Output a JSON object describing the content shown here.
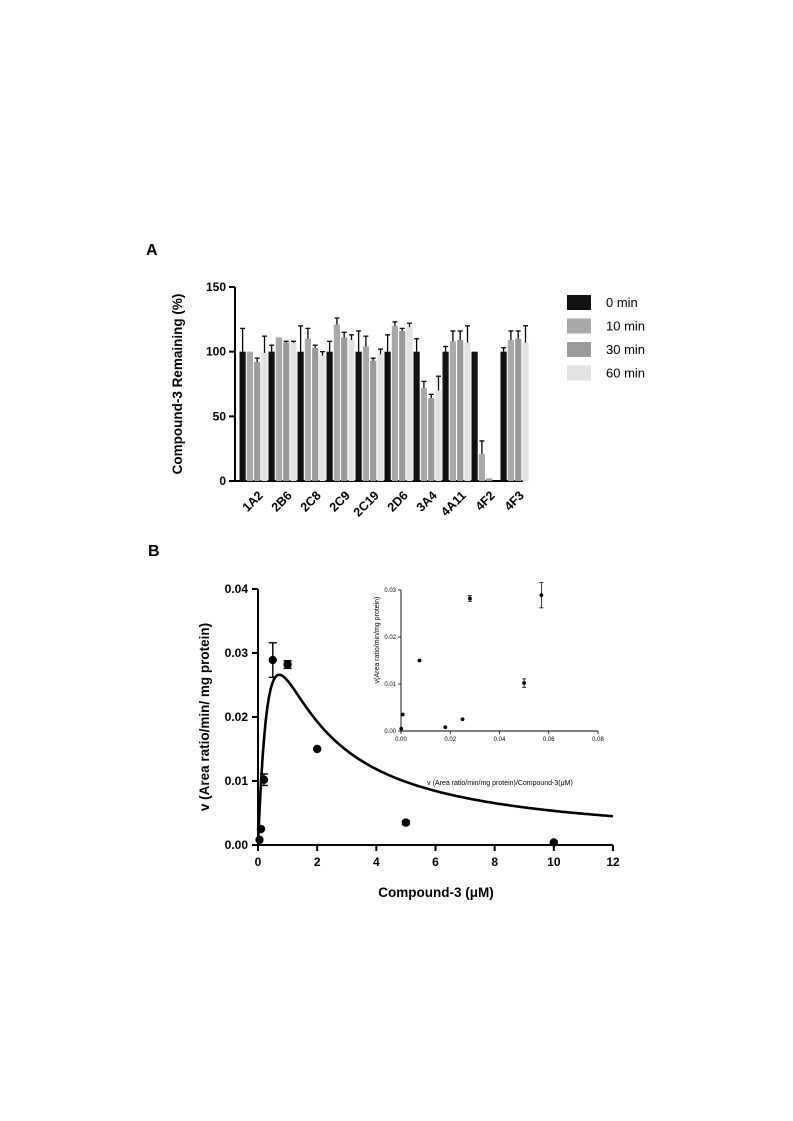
{
  "labels": {
    "panel_a": "A",
    "panel_b": "B"
  },
  "colors": {
    "c0": "#111111",
    "c10": "#a9a9a9",
    "c30": "#9a9a9a",
    "c60": "#e2e2e2",
    "ink": "#000000"
  },
  "chart_data": [
    {
      "type": "bar",
      "title": "",
      "xlabel": "",
      "ylabel": "Compound-3 Remaining (%)",
      "ylim": [
        0,
        150
      ],
      "yticks": [
        0,
        50,
        100,
        150
      ],
      "categories": [
        "1A2",
        "2B6",
        "2C8",
        "2C9",
        "2C19",
        "2D6",
        "3A4",
        "4A11",
        "4F2",
        "4F3"
      ],
      "series": [
        {
          "name": "0 min",
          "values": [
            100,
            100,
            100,
            100,
            100,
            100,
            100,
            100,
            100,
            100
          ],
          "errors": [
            18,
            5,
            20,
            8,
            16,
            13,
            10,
            4,
            0,
            3
          ]
        },
        {
          "name": "10 min",
          "values": [
            100,
            111,
            110,
            121,
            104,
            120,
            72,
            108,
            21,
            109
          ],
          "errors": [
            0,
            0,
            8,
            5,
            8,
            3,
            5,
            8,
            10,
            7
          ]
        },
        {
          "name": "30 min",
          "values": [
            92,
            107,
            103,
            111,
            93,
            116,
            64,
            109,
            2,
            110
          ],
          "errors": [
            3,
            1,
            2,
            4,
            2,
            2,
            3,
            7,
            0,
            6
          ]
        },
        {
          "name": "60 min",
          "values": [
            99,
            107,
            97,
            109,
            98,
            119,
            70,
            107,
            0,
            107
          ],
          "errors": [
            13,
            1,
            3,
            4,
            4,
            3,
            11,
            13,
            0,
            13
          ]
        }
      ],
      "legend": "right"
    },
    {
      "type": "scatter",
      "title": "",
      "xlabel": "Compound-3 (μM)",
      "ylabel": "v  (Area ratio/min/ mg protein)",
      "xlim": [
        0,
        12
      ],
      "ylim": [
        0,
        0.04
      ],
      "xticks": [
        "0",
        "2",
        "4",
        "6",
        "8",
        "10",
        "12"
      ],
      "yticks": [
        "0.00",
        "0.01",
        "0.02",
        "0.03",
        "0.04"
      ],
      "points": [
        {
          "x": 0.05,
          "y": 0.0008,
          "err": 0
        },
        {
          "x": 0.1,
          "y": 0.0025,
          "err": 0
        },
        {
          "x": 0.2,
          "y": 0.0102,
          "err": 0.0009
        },
        {
          "x": 0.5,
          "y": 0.0289,
          "err": 0.0027
        },
        {
          "x": 1.0,
          "y": 0.0282,
          "err": 0.0006
        },
        {
          "x": 2.0,
          "y": 0.015,
          "err": 0
        },
        {
          "x": 5.0,
          "y": 0.0035,
          "err": 0.0003
        },
        {
          "x": 10.0,
          "y": 0.0004,
          "err": 0
        }
      ],
      "fit_curve": {
        "model": "substrate inhibition",
        "x_peak": 0.72,
        "y_peak": 0.0266
      }
    },
    {
      "type": "scatter",
      "title": "",
      "xlabel": "v (Area ratio/min/mg protein)/Compound-3(μM)",
      "ylabel": "v(Area ratio/min/mg protein)",
      "xlim": [
        0,
        0.08
      ],
      "ylim": [
        0,
        0.03
      ],
      "xticks": [
        "0.00",
        "0.02",
        "0.04",
        "0.06",
        "0.08"
      ],
      "yticks": [
        "0.00",
        "0.01",
        "0.02",
        "0.03"
      ],
      "points": [
        {
          "x": 0.0001,
          "y": 0.0005,
          "err": 0
        },
        {
          "x": 0.0007,
          "y": 0.0035,
          "err": 0
        },
        {
          "x": 0.0075,
          "y": 0.015,
          "err": 0
        },
        {
          "x": 0.018,
          "y": 0.0008,
          "err": 0
        },
        {
          "x": 0.025,
          "y": 0.0025,
          "err": 0
        },
        {
          "x": 0.028,
          "y": 0.0282,
          "err": 0.0006
        },
        {
          "x": 0.05,
          "y": 0.0102,
          "err": 0.0009
        },
        {
          "x": 0.057,
          "y": 0.0289,
          "err": 0.0027
        }
      ]
    }
  ]
}
